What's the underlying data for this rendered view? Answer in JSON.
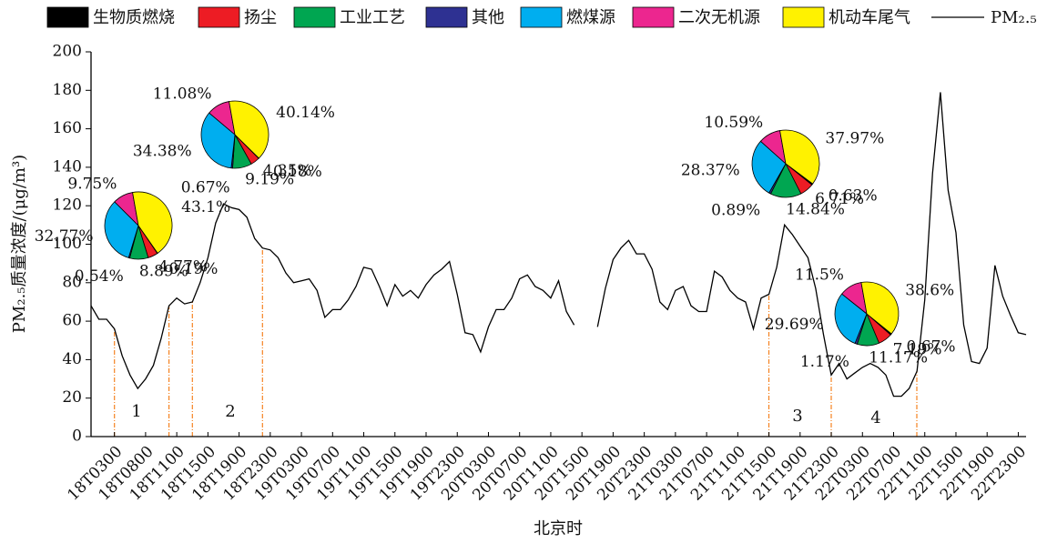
{
  "chart_data": [
    {
      "type": "line",
      "x_label": "北京时",
      "y_label": "PM₂.₅质量浓度/(μg/m³)",
      "ylim": [
        0,
        200
      ],
      "yticks": [
        0,
        20,
        40,
        60,
        80,
        100,
        120,
        140,
        160,
        180,
        200
      ],
      "annotations": [
        "1",
        "2",
        "3",
        "4"
      ],
      "categories": [
        null,
        null,
        null,
        "18T0300",
        null,
        null,
        null,
        "18T0800",
        null,
        null,
        null,
        "18T1100",
        null,
        null,
        null,
        "18T1500",
        null,
        null,
        null,
        "18T1900",
        null,
        null,
        null,
        "18T2300",
        null,
        null,
        null,
        "19T0300",
        null,
        null,
        null,
        "19T0700",
        null,
        null,
        null,
        "19T1100",
        null,
        null,
        null,
        "19T1500",
        null,
        null,
        null,
        "19T1900",
        null,
        null,
        null,
        "19T2300",
        null,
        null,
        null,
        "20T0300",
        null,
        null,
        null,
        "20T0700",
        null,
        null,
        null,
        "20T1100",
        null,
        null,
        null,
        "20T1500",
        null,
        null,
        null,
        "20T1900",
        null,
        null,
        null,
        "20T2300",
        null,
        null,
        null,
        "21T0300",
        null,
        null,
        null,
        "21T0700",
        null,
        null,
        null,
        "21T1100",
        null,
        null,
        null,
        "21T1500",
        null,
        null,
        null,
        "21T1900",
        null,
        null,
        null,
        "21T2300",
        null,
        null,
        null,
        "22T0300",
        null,
        null,
        null,
        "22T0700",
        null,
        null,
        null,
        "22T1100",
        null,
        null,
        null,
        "22T1500",
        null,
        null,
        null,
        "22T1900",
        null,
        null,
        null,
        "22T2300",
        null
      ],
      "series": [
        {
          "name": "PM₂.₅",
          "color": "#000000",
          "values": [
            68,
            61,
            61,
            56,
            42,
            32,
            25,
            30,
            37,
            51,
            68,
            72,
            69,
            70,
            80,
            93,
            111,
            121,
            119,
            118,
            114,
            103,
            98,
            97,
            93,
            85,
            80,
            81,
            82,
            76,
            62,
            66,
            66,
            71,
            78,
            88,
            87,
            78,
            68,
            79,
            73,
            76,
            72,
            79,
            84,
            87,
            91,
            74,
            54,
            53,
            44,
            57,
            66,
            66,
            72,
            82,
            84,
            78,
            76,
            72,
            81,
            65,
            58,
            null,
            null,
            57,
            77,
            92,
            98,
            102,
            95,
            95,
            87,
            70,
            66,
            76,
            78,
            68,
            65,
            65,
            86,
            83,
            76,
            72,
            70,
            56,
            72,
            74,
            88,
            110,
            105,
            99,
            93,
            77,
            53,
            32,
            38,
            30,
            33,
            36,
            38,
            36,
            32,
            21,
            21,
            25,
            34,
            71,
            137,
            179,
            128,
            106,
            58,
            39,
            38,
            46,
            89,
            73,
            63,
            54,
            53
          ]
        }
      ]
    },
    {
      "type": "pie",
      "categories": [
        "生物质燃烧",
        "扬尘",
        "工业工艺",
        "其他",
        "燃煤源",
        "二次无机源",
        "机动车尾气"
      ],
      "colors": [
        "#000000",
        "#ed1c24",
        "#00a651",
        "#2e3192",
        "#00aeef",
        "#ec268f",
        "#fff200"
      ],
      "values": [
        0.19,
        4.77,
        8.89,
        0.54,
        32.77,
        9.75,
        43.1
      ],
      "value_labels": [
        "0.19%",
        "4.77%",
        "8.89%",
        "0.54%",
        "32.77%",
        "9.75%",
        "43.1%"
      ]
    },
    {
      "type": "pie",
      "categories": [
        "生物质燃烧",
        "扬尘",
        "工业工艺",
        "其他",
        "燃煤源",
        "二次无机源",
        "机动车尾气"
      ],
      "colors": [
        "#000000",
        "#ed1c24",
        "#00a651",
        "#2e3192",
        "#00aeef",
        "#ec268f",
        "#fff200"
      ],
      "values": [
        0.18,
        4.35,
        9.19,
        0.67,
        34.38,
        11.08,
        40.14
      ],
      "value_labels": [
        "0.18%",
        "4.35%",
        "9.19%",
        "0.67%",
        "34.38%",
        "11.08%",
        "40.14%"
      ]
    },
    {
      "type": "pie",
      "categories": [
        "生物质燃烧",
        "扬尘",
        "工业工艺",
        "其他",
        "燃煤源",
        "二次无机源",
        "机动车尾气"
      ],
      "colors": [
        "#000000",
        "#ed1c24",
        "#00a651",
        "#2e3192",
        "#00aeef",
        "#ec268f",
        "#fff200"
      ],
      "values": [
        0.63,
        6.71,
        14.84,
        0.89,
        28.37,
        10.59,
        37.97
      ],
      "value_labels": [
        "0.63%",
        "6.71%",
        "14.84%",
        "0.89%",
        "28.37%",
        "10.59%",
        "37.97%"
      ]
    },
    {
      "type": "pie",
      "categories": [
        "生物质燃烧",
        "扬尘",
        "工业工艺",
        "其他",
        "燃煤源",
        "二次无机源",
        "机动车尾气"
      ],
      "colors": [
        "#000000",
        "#ed1c24",
        "#00a651",
        "#2e3192",
        "#00aeef",
        "#ec268f",
        "#fff200"
      ],
      "values": [
        0.67,
        7.19,
        11.17,
        1.17,
        29.69,
        11.5,
        38.6
      ],
      "value_labels": [
        "0.67%",
        "7.19%",
        "11.17%",
        "1.17%",
        "29.69%",
        "11.5%",
        "38.6%"
      ]
    }
  ]
}
